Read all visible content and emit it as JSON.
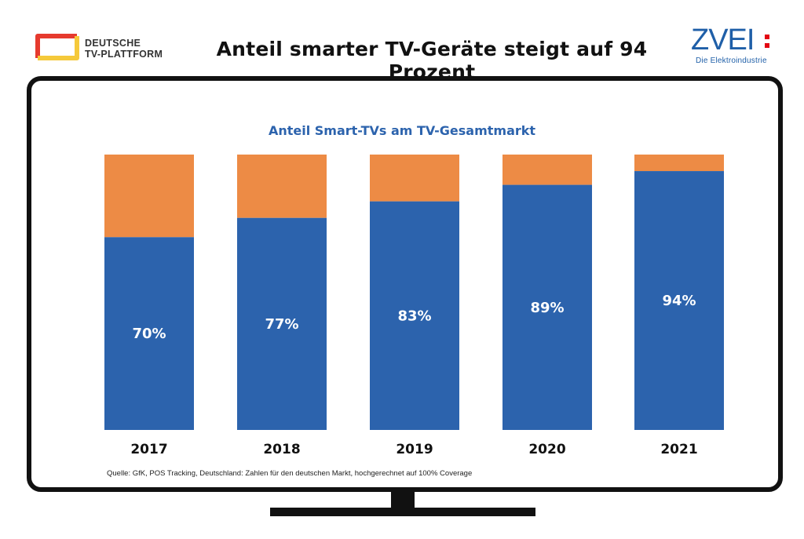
{
  "header": {
    "title": "Anteil smarter TV-Geräte steigt auf 94 Prozent",
    "left_logo": {
      "line1": "DEUTSCHE",
      "line2": "TV-PLATTFORM",
      "icon": "tv-frame-logo-icon"
    },
    "right_logo": {
      "word": "ZVEI",
      "subtitle": "Die Elektroindustrie"
    }
  },
  "colors": {
    "smart": "#2c63ad",
    "other": "#ed8b45",
    "title": "#2c63ad",
    "zvei_blue": "#1f5fa8",
    "zvei_red": "#e30613",
    "logo_red": "#e63a2e",
    "logo_yellow": "#f5c93a"
  },
  "chart_data": {
    "type": "bar",
    "stacked": true,
    "title": "Anteil Smart-TVs am TV-Gesamtmarkt",
    "categories": [
      "2017",
      "2018",
      "2019",
      "2020",
      "2021"
    ],
    "series": [
      {
        "values": [
          70,
          77,
          83,
          89,
          94
        ],
        "labels": [
          "70%",
          "77%",
          "83%",
          "89%",
          "94%"
        ]
      },
      {
        "values": [
          30,
          23,
          17,
          11,
          6
        ]
      }
    ],
    "ylim": [
      0,
      100
    ],
    "xlabel": "",
    "ylabel": "",
    "grid": false,
    "legend": "none"
  },
  "source": "Quelle: GfK, POS Tracking, Deutschland: Zahlen für den deutschen Markt, hochgerechnet auf 100% Coverage"
}
